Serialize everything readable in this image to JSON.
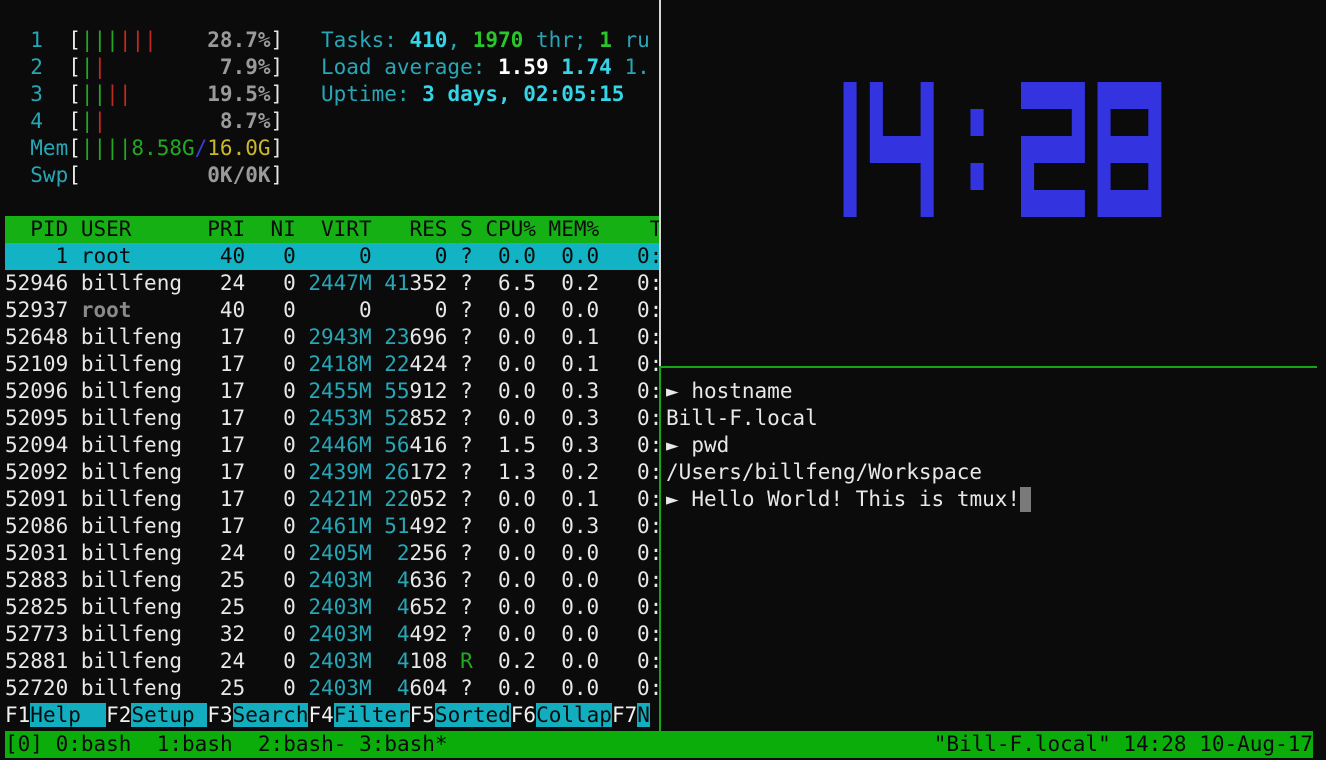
{
  "colors": {
    "background": "#0b0b0b",
    "cyan": "#27a6b6",
    "green": "#22a922",
    "red": "#c02a1f",
    "header_bg": "#14b014",
    "selected_bg": "#12b3c4",
    "clock": "#3333e0",
    "status_bg": "#0bad0b",
    "active_border": "#13a813"
  },
  "htop": {
    "cpu_meters": [
      {
        "label": "1",
        "green_bars": 3,
        "red_bars": 3,
        "value": "28.7%"
      },
      {
        "label": "2",
        "green_bars": 1,
        "red_bars": 1,
        "value": "7.9%"
      },
      {
        "label": "3",
        "green_bars": 2,
        "red_bars": 2,
        "value": "19.5%"
      },
      {
        "label": "4",
        "green_bars": 1,
        "red_bars": 1,
        "value": "8.7%"
      }
    ],
    "mem": {
      "label": "Mem",
      "green_bars": 4,
      "used": "8.58G",
      "separator": "/",
      "total": "16.0G"
    },
    "swap": {
      "label": "Swp",
      "value": "0K/0K"
    },
    "tasks": [
      {
        "text": "Tasks: ",
        "style": "cy"
      },
      {
        "text": "410",
        "style": "cyb"
      },
      {
        "text": ", ",
        "style": "cy"
      },
      {
        "text": "1970",
        "style": "grb"
      },
      {
        "text": " thr; ",
        "style": "cy"
      },
      {
        "text": "1",
        "style": "grb"
      },
      {
        "text": " ru",
        "style": "cy"
      }
    ],
    "load_average": [
      {
        "text": "Load average: ",
        "style": "cy"
      },
      {
        "text": "1.59",
        "style": "wb"
      },
      {
        "text": " ",
        "style": "cy"
      },
      {
        "text": "1.74",
        "style": "cyb"
      },
      {
        "text": " 1.",
        "style": "cy"
      }
    ],
    "uptime": [
      {
        "text": "Uptime: ",
        "style": "cy"
      },
      {
        "text": "3 days, 02:05:15",
        "style": "cyb"
      }
    ],
    "columns": {
      "pid": "PID",
      "user": "USER",
      "pri": "PRI",
      "ni": "NI",
      "virt": "VIRT",
      "res": "RES",
      "s": "S",
      "cpu": "CPU%",
      "mem": "MEM%",
      "time": "T"
    },
    "processes": [
      {
        "pid": "1",
        "user": "root",
        "pri": "40",
        "ni": "0",
        "virt": "0",
        "res": "0",
        "s": "?",
        "cpu": "0.0",
        "mem": "0.0",
        "time": "0:",
        "selected": true
      },
      {
        "pid": "52946",
        "user": "billfeng",
        "pri": "24",
        "ni": "0",
        "virt": "2447M",
        "res": "41352",
        "s": "?",
        "cpu": "6.5",
        "mem": "0.2",
        "time": "0:"
      },
      {
        "pid": "52937",
        "user": "root",
        "pri": "40",
        "ni": "0",
        "virt": "0",
        "res": "0",
        "s": "?",
        "cpu": "0.0",
        "mem": "0.0",
        "time": "0:",
        "dim_user": true
      },
      {
        "pid": "52648",
        "user": "billfeng",
        "pri": "17",
        "ni": "0",
        "virt": "2943M",
        "res": "23696",
        "s": "?",
        "cpu": "0.0",
        "mem": "0.1",
        "time": "0:"
      },
      {
        "pid": "52109",
        "user": "billfeng",
        "pri": "17",
        "ni": "0",
        "virt": "2418M",
        "res": "22424",
        "s": "?",
        "cpu": "0.0",
        "mem": "0.1",
        "time": "0:"
      },
      {
        "pid": "52096",
        "user": "billfeng",
        "pri": "17",
        "ni": "0",
        "virt": "2455M",
        "res": "55912",
        "s": "?",
        "cpu": "0.0",
        "mem": "0.3",
        "time": "0:"
      },
      {
        "pid": "52095",
        "user": "billfeng",
        "pri": "17",
        "ni": "0",
        "virt": "2453M",
        "res": "52852",
        "s": "?",
        "cpu": "0.0",
        "mem": "0.3",
        "time": "0:"
      },
      {
        "pid": "52094",
        "user": "billfeng",
        "pri": "17",
        "ni": "0",
        "virt": "2446M",
        "res": "56416",
        "s": "?",
        "cpu": "1.5",
        "mem": "0.3",
        "time": "0:"
      },
      {
        "pid": "52092",
        "user": "billfeng",
        "pri": "17",
        "ni": "0",
        "virt": "2439M",
        "res": "26172",
        "s": "?",
        "cpu": "1.3",
        "mem": "0.2",
        "time": "0:"
      },
      {
        "pid": "52091",
        "user": "billfeng",
        "pri": "17",
        "ni": "0",
        "virt": "2421M",
        "res": "22052",
        "s": "?",
        "cpu": "0.0",
        "mem": "0.1",
        "time": "0:"
      },
      {
        "pid": "52086",
        "user": "billfeng",
        "pri": "17",
        "ni": "0",
        "virt": "2461M",
        "res": "51492",
        "s": "?",
        "cpu": "0.0",
        "mem": "0.3",
        "time": "0:"
      },
      {
        "pid": "52031",
        "user": "billfeng",
        "pri": "24",
        "ni": "0",
        "virt": "2405M",
        "res": "2256",
        "s": "?",
        "cpu": "0.0",
        "mem": "0.0",
        "time": "0:"
      },
      {
        "pid": "52883",
        "user": "billfeng",
        "pri": "25",
        "ni": "0",
        "virt": "2403M",
        "res": "4636",
        "s": "?",
        "cpu": "0.0",
        "mem": "0.0",
        "time": "0:"
      },
      {
        "pid": "52825",
        "user": "billfeng",
        "pri": "25",
        "ni": "0",
        "virt": "2403M",
        "res": "4652",
        "s": "?",
        "cpu": "0.0",
        "mem": "0.0",
        "time": "0:"
      },
      {
        "pid": "52773",
        "user": "billfeng",
        "pri": "32",
        "ni": "0",
        "virt": "2403M",
        "res": "4492",
        "s": "?",
        "cpu": "0.0",
        "mem": "0.0",
        "time": "0:"
      },
      {
        "pid": "52881",
        "user": "billfeng",
        "pri": "24",
        "ni": "0",
        "virt": "2403M",
        "res": "4108",
        "s": "R",
        "cpu": "0.2",
        "mem": "0.0",
        "time": "0:"
      },
      {
        "pid": "52720",
        "user": "billfeng",
        "pri": "25",
        "ni": "0",
        "virt": "2403M",
        "res": "4604",
        "s": "?",
        "cpu": "0.0",
        "mem": "0.0",
        "time": "0:"
      }
    ],
    "function_keys": [
      {
        "key": "F1",
        "label": "Help  "
      },
      {
        "key": "F2",
        "label": "Setup "
      },
      {
        "key": "F3",
        "label": "Search"
      },
      {
        "key": "F4",
        "label": "Filter"
      },
      {
        "key": "F5",
        "label": "Sorted"
      },
      {
        "key": "F6",
        "label": "Collap"
      },
      {
        "key": "F7",
        "label": "N"
      }
    ]
  },
  "clock": {
    "time": "14:28"
  },
  "shell": {
    "prompt_symbol": "►",
    "lines": [
      {
        "type": "prompt",
        "text": "hostname"
      },
      {
        "type": "output",
        "text": "Bill-F.local"
      },
      {
        "type": "prompt",
        "text": "pwd"
      },
      {
        "type": "output",
        "text": "/Users/billfeng/Workspace"
      },
      {
        "type": "prompt",
        "text": "Hello World! This is tmux!",
        "cursor": true
      }
    ]
  },
  "status_bar": {
    "session": "[0]",
    "windows": [
      "0:bash",
      "1:bash",
      "2:bash-",
      "3:bash*"
    ],
    "right": "\"Bill-F.local\" 14:28 10-Aug-17"
  }
}
